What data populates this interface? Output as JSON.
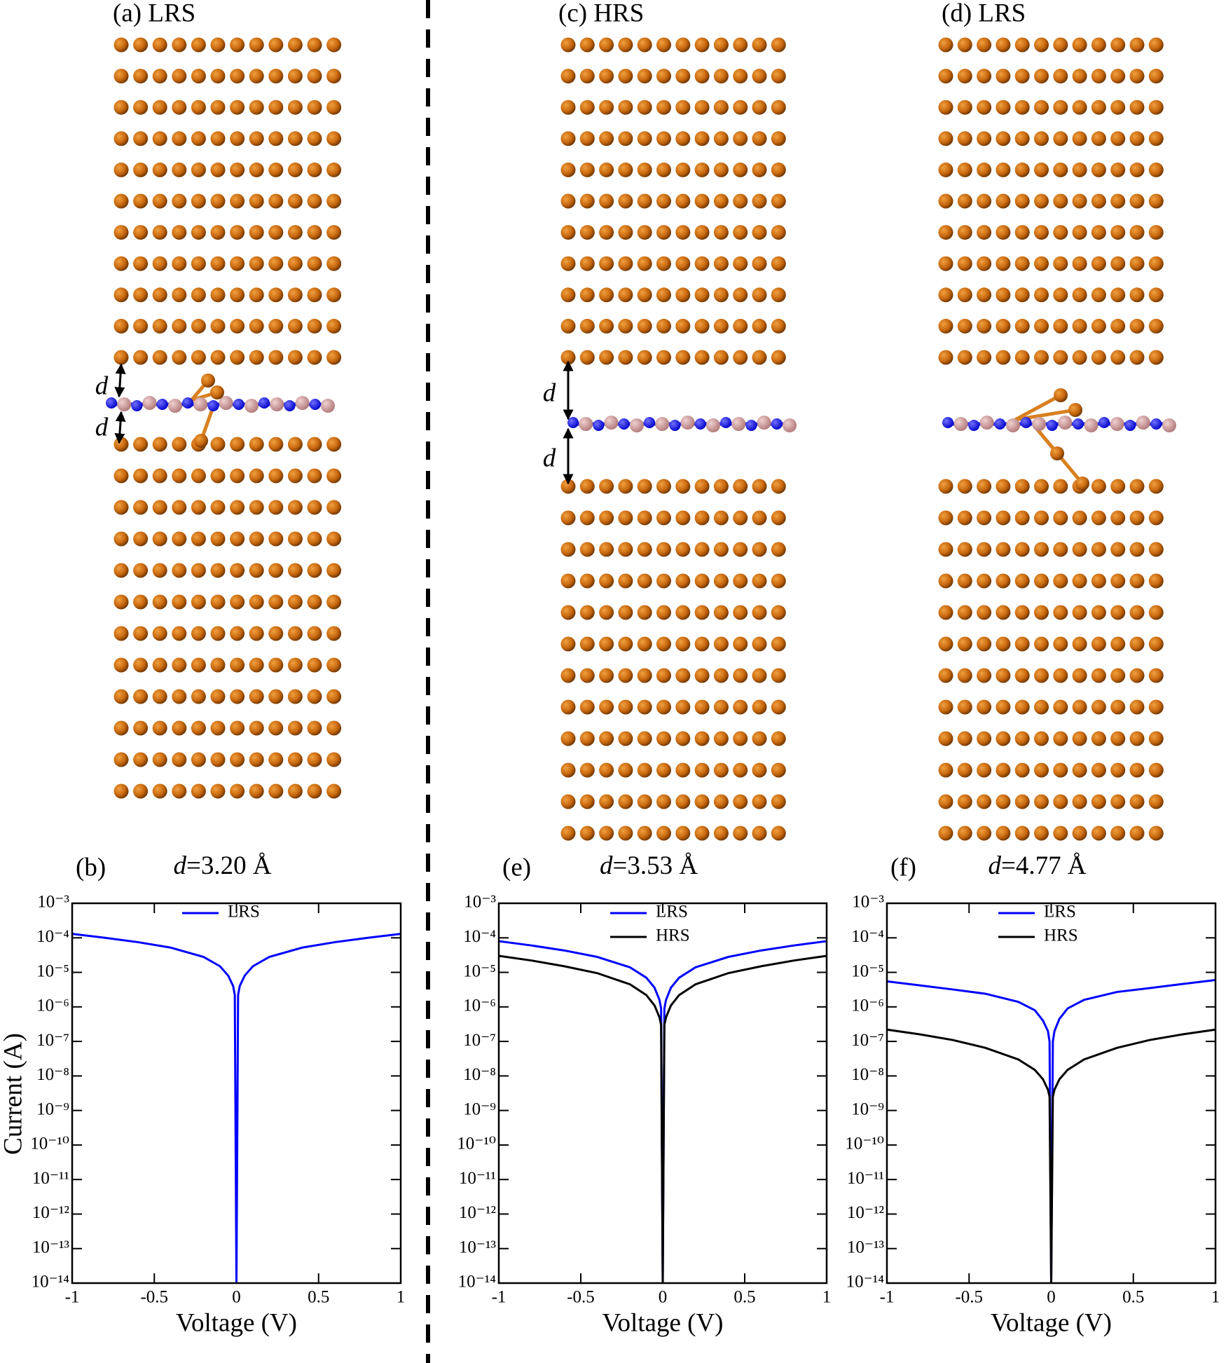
{
  "structures": [
    {
      "label": "(a) LRS",
      "d_labels": [
        "d",
        "d"
      ]
    },
    {
      "label": "(c) HRS",
      "d_labels": [
        "d",
        "d"
      ]
    },
    {
      "label": "(d) LRS"
    }
  ],
  "chart_data": [
    {
      "type": "line",
      "panel_label": "(b)",
      "title": "d=3.20 Å",
      "xlabel": "Voltage (V)",
      "ylabel": "Current (A)",
      "x": [
        -1,
        -0.8,
        -0.6,
        -0.4,
        -0.2,
        -0.1,
        -0.05,
        -0.02,
        -0.01,
        0,
        0.01,
        0.02,
        0.05,
        0.1,
        0.2,
        0.4,
        0.6,
        0.8,
        1
      ],
      "series": [
        {
          "name": "LRS",
          "color": "#0000ff",
          "values": [
            0.00013,
            0.0001,
            7.5e-05,
            5.2e-05,
            2.8e-05,
            1.5e-05,
            8e-06,
            4e-06,
            2.2e-06,
            1e-14,
            2.2e-06,
            4e-06,
            8e-06,
            1.5e-05,
            2.8e-05,
            5.2e-05,
            7.5e-05,
            0.0001,
            0.00013
          ]
        }
      ],
      "xlim": [
        -1,
        1
      ],
      "xticks": [
        -1,
        -0.5,
        0,
        0.5,
        1
      ],
      "yscale": "log",
      "ylim": [
        1e-14,
        0.001
      ],
      "yticks": [
        {
          "value": 1e-14,
          "label": "10⁻¹⁴"
        },
        {
          "value": 1e-13,
          "label": "10⁻¹³"
        },
        {
          "value": 1e-12,
          "label": "10⁻¹²"
        },
        {
          "value": 1e-11,
          "label": "10⁻¹¹"
        },
        {
          "value": 1e-10,
          "label": "10⁻¹⁰"
        },
        {
          "value": 1e-09,
          "label": "10⁻⁹"
        },
        {
          "value": 1e-08,
          "label": "10⁻⁸"
        },
        {
          "value": 1e-07,
          "label": "10⁻⁷"
        },
        {
          "value": 1e-06,
          "label": "10⁻⁶"
        },
        {
          "value": 1e-05,
          "label": "10⁻⁵"
        },
        {
          "value": 0.0001,
          "label": "10⁻⁴"
        },
        {
          "value": 0.001,
          "label": "10⁻³"
        }
      ]
    },
    {
      "type": "line",
      "panel_label": "(e)",
      "title": "d=3.53 Å",
      "xlabel": "Voltage (V)",
      "x": [
        -1,
        -0.8,
        -0.6,
        -0.4,
        -0.2,
        -0.1,
        -0.05,
        -0.02,
        -0.01,
        0,
        0.01,
        0.02,
        0.05,
        0.1,
        0.2,
        0.4,
        0.6,
        0.8,
        1
      ],
      "series": [
        {
          "name": "LRS",
          "color": "#0000ff",
          "values": [
            8e-05,
            6e-05,
            4.3e-05,
            2.8e-05,
            1.4e-05,
            7e-06,
            3.6e-06,
            1.6e-06,
            9e-07,
            1e-14,
            9e-07,
            1.6e-06,
            3.6e-06,
            7e-06,
            1.4e-05,
            2.8e-05,
            4.3e-05,
            6e-05,
            8e-05
          ]
        },
        {
          "name": "HRS",
          "color": "#000000",
          "values": [
            3e-05,
            2.2e-05,
            1.5e-05,
            9.5e-06,
            4.5e-06,
            2.2e-06,
            1.1e-06,
            5e-07,
            3e-07,
            1e-14,
            3e-07,
            5e-07,
            1.1e-06,
            2.2e-06,
            4.5e-06,
            9.5e-06,
            1.5e-05,
            2.2e-05,
            3e-05
          ]
        }
      ],
      "xlim": [
        -1,
        1
      ],
      "xticks": [
        -1,
        -0.5,
        0,
        0.5,
        1
      ],
      "yscale": "log",
      "ylim": [
        1e-14,
        0.001
      ],
      "yticks": [
        {
          "value": 1e-14,
          "label": "10⁻¹⁴"
        },
        {
          "value": 1e-13,
          "label": "10⁻¹³"
        },
        {
          "value": 1e-12,
          "label": "10⁻¹²"
        },
        {
          "value": 1e-11,
          "label": "10⁻¹¹"
        },
        {
          "value": 1e-10,
          "label": "10⁻¹⁰"
        },
        {
          "value": 1e-09,
          "label": "10⁻⁹"
        },
        {
          "value": 1e-08,
          "label": "10⁻⁸"
        },
        {
          "value": 1e-07,
          "label": "10⁻⁷"
        },
        {
          "value": 1e-06,
          "label": "10⁻⁶"
        },
        {
          "value": 1e-05,
          "label": "10⁻⁵"
        },
        {
          "value": 0.0001,
          "label": "10⁻⁴"
        },
        {
          "value": 0.001,
          "label": "10⁻³"
        }
      ]
    },
    {
      "type": "line",
      "panel_label": "(f)",
      "title": "d=4.77 Å",
      "xlabel": "Voltage (V)",
      "x": [
        -1,
        -0.8,
        -0.6,
        -0.4,
        -0.2,
        -0.1,
        -0.05,
        -0.02,
        -0.01,
        0,
        0.01,
        0.02,
        0.05,
        0.1,
        0.2,
        0.4,
        0.6,
        0.8,
        1
      ],
      "series": [
        {
          "name": "LRS",
          "color": "#0000ff",
          "values": [
            5.5e-06,
            4.2e-06,
            3.2e-06,
            2.4e-06,
            1.4e-06,
            8e-07,
            4e-07,
            2e-07,
            1e-07,
            1e-14,
            1e-07,
            2e-07,
            4.5e-07,
            9e-07,
            1.6e-06,
            2.7e-06,
            3.5e-06,
            4.6e-06,
            6e-06
          ]
        },
        {
          "name": "HRS",
          "color": "#000000",
          "values": [
            2.2e-07,
            1.6e-07,
            1.1e-07,
            6.5e-08,
            3e-08,
            1.5e-08,
            8e-09,
            4e-09,
            2.5e-09,
            1e-14,
            2.5e-09,
            4e-09,
            8e-09,
            1.5e-08,
            3e-08,
            6.5e-08,
            1.1e-07,
            1.6e-07,
            2.2e-07
          ]
        }
      ],
      "xlim": [
        -1,
        1
      ],
      "xticks": [
        -1,
        -0.5,
        0,
        0.5,
        1
      ],
      "yscale": "log",
      "ylim": [
        1e-14,
        0.001
      ],
      "yticks": [
        {
          "value": 1e-14,
          "label": "10⁻¹⁴"
        },
        {
          "value": 1e-13,
          "label": "10⁻¹³"
        },
        {
          "value": 1e-12,
          "label": "10⁻¹²"
        },
        {
          "value": 1e-11,
          "label": "10⁻¹¹"
        },
        {
          "value": 1e-10,
          "label": "10⁻¹⁰"
        },
        {
          "value": 1e-09,
          "label": "10⁻⁹"
        },
        {
          "value": 1e-08,
          "label": "10⁻⁸"
        },
        {
          "value": 1e-07,
          "label": "10⁻⁷"
        },
        {
          "value": 1e-06,
          "label": "10⁻⁶"
        },
        {
          "value": 1e-05,
          "label": "10⁻⁵"
        },
        {
          "value": 0.0001,
          "label": "10⁻⁴"
        },
        {
          "value": 0.001,
          "label": "10⁻³"
        }
      ]
    }
  ]
}
